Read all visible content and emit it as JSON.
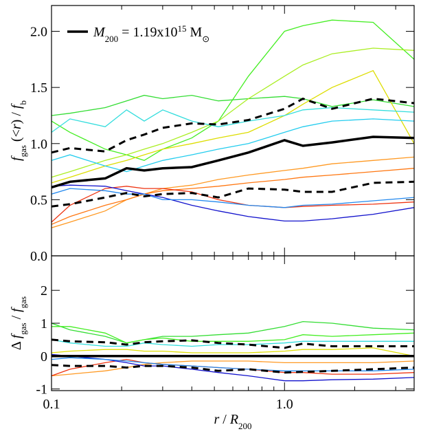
{
  "chart_data": [
    {
      "type": "line",
      "xscale": "log",
      "x": [
        0.1,
        0.12,
        0.17,
        0.21,
        0.25,
        0.3,
        0.4,
        0.52,
        0.7,
        1.0,
        1.2,
        1.6,
        2.4,
        3.6
      ],
      "xlim": [
        0.1,
        3.6
      ],
      "xticks": [
        0.1,
        {
          "value": 1,
          "label": "1.0"
        }
      ],
      "xminorticks": [
        0.2,
        0.3,
        0.4,
        0.5,
        0.6,
        0.7,
        0.8,
        0.9,
        2,
        3
      ],
      "ylim": [
        0,
        2.23
      ],
      "yticks": [
        {
          "value": 0,
          "label": "0.0"
        },
        0.5,
        {
          "value": 1,
          "label": "1.0"
        },
        1.5,
        {
          "value": 2,
          "label": "2.0"
        }
      ],
      "ylabel": [
        {
          "text": "f",
          "style": "italic"
        },
        {
          "text": "gas",
          "style": "sub"
        },
        {
          "text": " (<",
          "style": "normal"
        },
        {
          "text": "r",
          "style": "italic"
        },
        {
          "text": ") / ",
          "style": "normal"
        },
        {
          "text": "f",
          "style": "italic"
        },
        {
          "text": "b",
          "style": "sub"
        }
      ],
      "legend": [
        {
          "text": "M",
          "style": "italic"
        },
        {
          "text": "200",
          "style": "sub"
        },
        {
          "text": " = 1.19x10",
          "style": "normal"
        },
        {
          "text": "15",
          "style": "sup"
        },
        {
          "text": " M",
          "style": "normal"
        },
        {
          "text": "⊙",
          "style": "sub"
        }
      ],
      "series": [
        {
          "color": "#33dd33",
          "values": [
            1.25,
            1.27,
            1.32,
            1.38,
            1.43,
            1.4,
            1.43,
            1.38,
            1.4,
            1.42,
            1.4,
            1.33,
            1.39,
            1.33
          ]
        },
        {
          "color": "#44ee22",
          "values": [
            1.2,
            1.1,
            0.95,
            0.9,
            0.85,
            0.95,
            1.05,
            1.2,
            1.6,
            2.0,
            2.05,
            2.1,
            2.08,
            1.75
          ]
        },
        {
          "color": "#aaee22",
          "values": [
            0.7,
            0.75,
            0.85,
            0.9,
            0.95,
            1.0,
            1.1,
            1.2,
            1.4,
            1.6,
            1.7,
            1.8,
            1.85,
            1.83
          ]
        },
        {
          "color": "#dddd00",
          "values": [
            0.65,
            0.7,
            0.8,
            0.85,
            0.9,
            0.95,
            1.0,
            1.05,
            1.1,
            1.25,
            1.35,
            1.5,
            1.65,
            1.0
          ]
        },
        {
          "color": "#33dddd",
          "values": [
            1.1,
            1.22,
            1.15,
            1.3,
            1.2,
            1.3,
            1.2,
            1.15,
            1.2,
            1.25,
            1.3,
            1.32,
            1.3,
            1.28
          ]
        },
        {
          "color": "#22ccee",
          "values": [
            0.85,
            0.9,
            0.8,
            0.75,
            0.8,
            0.85,
            0.9,
            0.95,
            1.0,
            1.1,
            1.15,
            1.2,
            1.22,
            1.2
          ]
        },
        {
          "color": "#ff9922",
          "values": [
            0.25,
            0.3,
            0.4,
            0.5,
            0.55,
            0.6,
            0.63,
            0.68,
            0.72,
            0.76,
            0.78,
            0.82,
            0.85,
            0.88
          ]
        },
        {
          "color": "#ff7711",
          "values": [
            0.28,
            0.35,
            0.45,
            0.5,
            0.55,
            0.58,
            0.6,
            0.62,
            0.65,
            0.68,
            0.7,
            0.72,
            0.75,
            0.78
          ]
        },
        {
          "color": "#ee3311",
          "values": [
            0.3,
            0.45,
            0.6,
            0.62,
            0.6,
            0.6,
            0.57,
            0.5,
            0.45,
            0.43,
            0.44,
            0.45,
            0.46,
            0.48
          ]
        },
        {
          "color": "#1111cc",
          "values": [
            0.62,
            0.63,
            0.62,
            0.58,
            0.55,
            0.52,
            0.45,
            0.4,
            0.35,
            0.31,
            0.31,
            0.33,
            0.37,
            0.43
          ]
        },
        {
          "color": "#2288ee",
          "values": [
            0.55,
            0.6,
            0.58,
            0.55,
            0.55,
            0.5,
            0.5,
            0.48,
            0.45,
            0.43,
            0.45,
            0.46,
            0.49,
            0.52
          ]
        },
        {
          "color": "#000000",
          "linestyle": "dashed",
          "linewidth": 3,
          "values": [
            0.92,
            0.96,
            0.93,
            1.03,
            1.08,
            1.14,
            1.18,
            1.17,
            1.21,
            1.31,
            1.4,
            1.31,
            1.4,
            1.36
          ]
        },
        {
          "color": "#000000",
          "linestyle": "dashed",
          "linewidth": 3,
          "values": [
            0.44,
            0.46,
            0.52,
            0.56,
            0.53,
            0.55,
            0.56,
            0.52,
            0.6,
            0.59,
            0.57,
            0.57,
            0.65,
            0.66
          ]
        },
        {
          "color": "#000000",
          "linewidth": 3.5,
          "values": [
            0.61,
            0.66,
            0.69,
            0.78,
            0.76,
            0.78,
            0.79,
            0.85,
            0.92,
            1.03,
            0.98,
            1.01,
            1.06,
            1.05
          ]
        }
      ]
    },
    {
      "type": "line",
      "xscale": "log",
      "x": [
        0.1,
        0.12,
        0.17,
        0.21,
        0.25,
        0.3,
        0.4,
        0.52,
        0.7,
        1.0,
        1.2,
        1.6,
        2.4,
        3.6
      ],
      "xlim": [
        0.1,
        3.6
      ],
      "xticks": [
        0.1,
        {
          "value": 1,
          "label": "1.0"
        }
      ],
      "xminorticks": [
        0.2,
        0.3,
        0.4,
        0.5,
        0.6,
        0.7,
        0.8,
        0.9,
        2,
        3
      ],
      "ylim": [
        -1.05,
        3.05
      ],
      "yticks": [
        -1,
        0,
        1,
        2
      ],
      "xlabel": [
        {
          "text": "r",
          "style": "italic"
        },
        {
          "text": " / ",
          "style": "normal"
        },
        {
          "text": "R",
          "style": "italic"
        },
        {
          "text": "200",
          "style": "sub"
        }
      ],
      "ylabel": [
        {
          "text": "Δ ",
          "style": "normal"
        },
        {
          "text": "f",
          "style": "italic"
        },
        {
          "text": "gas",
          "style": "sub"
        },
        {
          "text": " / ",
          "style": "normal"
        },
        {
          "text": "f",
          "style": "italic"
        },
        {
          "text": "gas",
          "style": "sub"
        }
      ],
      "series": [
        {
          "color": "#33dd33",
          "values": [
            1.0,
            0.8,
            0.6,
            0.4,
            0.5,
            0.6,
            0.6,
            0.65,
            0.7,
            0.9,
            1.05,
            1.0,
            0.85,
            0.8
          ]
        },
        {
          "color": "#44ee22",
          "values": [
            0.9,
            0.9,
            0.7,
            0.4,
            0.5,
            0.55,
            0.45,
            0.45,
            0.45,
            0.5,
            0.65,
            0.6,
            0.65,
            0.7
          ]
        },
        {
          "color": "#33dddd",
          "values": [
            0.5,
            0.4,
            0.3,
            0.3,
            0.4,
            0.35,
            0.3,
            0.35,
            0.35,
            0.4,
            0.45,
            0.45,
            0.45,
            0.45
          ]
        },
        {
          "color": "#dddd00",
          "values": [
            0.1,
            0.15,
            0.2,
            0.2,
            0.15,
            0.15,
            0.1,
            0.1,
            0.1,
            0.15,
            0.2,
            0.2,
            0.25,
            0.0
          ]
        },
        {
          "color": "#ff9922",
          "values": [
            -0.6,
            -0.55,
            -0.45,
            -0.35,
            -0.25,
            -0.2,
            -0.15,
            -0.15,
            -0.15,
            -0.2,
            -0.2,
            -0.2,
            -0.2,
            -0.15
          ]
        },
        {
          "color": "#ee3311",
          "values": [
            -0.6,
            -0.4,
            -0.2,
            -0.1,
            -0.2,
            -0.25,
            -0.3,
            -0.35,
            -0.4,
            -0.5,
            -0.5,
            -0.55,
            -0.55,
            -0.5
          ]
        },
        {
          "color": "#1111cc",
          "values": [
            0.05,
            0,
            -0.1,
            -0.2,
            -0.3,
            -0.3,
            -0.4,
            -0.5,
            -0.6,
            -0.75,
            -0.75,
            -0.72,
            -0.7,
            -0.65
          ]
        },
        {
          "color": "#2288ee",
          "values": [
            -0.1,
            -0.05,
            -0.1,
            -0.15,
            -0.2,
            -0.25,
            -0.3,
            -0.35,
            -0.4,
            -0.45,
            -0.45,
            -0.45,
            -0.45,
            -0.4
          ]
        },
        {
          "color": "#000000",
          "linestyle": "dashed",
          "linewidth": 3,
          "values": [
            0.5,
            0.45,
            0.42,
            0.35,
            0.42,
            0.45,
            0.48,
            0.4,
            0.35,
            0.25,
            0.38,
            0.3,
            0.3,
            0.3
          ]
        },
        {
          "color": "#000000",
          "linestyle": "dashed",
          "linewidth": 3,
          "values": [
            -0.27,
            -0.3,
            -0.3,
            -0.35,
            -0.3,
            -0.3,
            -0.35,
            -0.45,
            -0.4,
            -0.5,
            -0.48,
            -0.45,
            -0.4,
            -0.35
          ]
        },
        {
          "color": "#000000",
          "linewidth": 3.5,
          "values": [
            0,
            0,
            0,
            0,
            0,
            0,
            0,
            0,
            0,
            0,
            0,
            0,
            0,
            0
          ]
        }
      ]
    }
  ]
}
